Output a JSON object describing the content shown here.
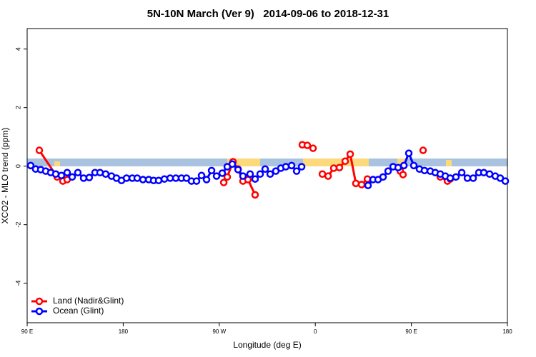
{
  "chart_data": {
    "type": "line",
    "title": "5N-10N March (Ver 9)   2014-09-06 to 2018-12-31",
    "x_label": "Longitude (deg E)",
    "y_label": "XCO2 - MLO trend (ppm)",
    "xlim": [
      90,
      540
    ],
    "xticks": [
      {
        "value": 90,
        "label": "90 E"
      },
      {
        "value": 180,
        "label": "180"
      },
      {
        "value": 270,
        "label": "90 W"
      },
      {
        "value": 360,
        "label": "0"
      },
      {
        "value": 450,
        "label": "90 E"
      },
      {
        "value": 540,
        "label": "180"
      }
    ],
    "ylim": [
      -5.35,
      4.7
    ],
    "yticks": [
      -4,
      -2,
      0,
      2,
      4
    ],
    "legend": "bottom-left",
    "series": [
      {
        "name": "Land (Nadir&Glint)",
        "color": "#ff0000",
        "x": [
          101.4,
          118.1,
          123.5,
          127.5,
          200,
          274.2,
          277.5,
          282.9,
          287.6,
          292.2,
          296.9,
          303.6,
          330,
          347.8,
          352.5,
          357.9,
          362,
          366.6,
          372.0,
          377.3,
          382.6,
          388.0,
          392.7,
          398.0,
          403.4,
          408.8,
          435,
          439.6,
          442.2,
          450,
          461.0,
          470,
          477.1,
          483.8,
          486.4
        ],
        "values": [
          0.54,
          -0.37,
          -0.51,
          -0.46,
          null,
          -0.56,
          -0.37,
          0.15,
          -0.1,
          -0.51,
          -0.46,
          -0.98,
          null,
          0.73,
          0.71,
          0.61,
          null,
          -0.27,
          -0.34,
          -0.07,
          -0.05,
          0.17,
          0.41,
          -0.59,
          -0.63,
          -0.44,
          null,
          -0.17,
          -0.29,
          null,
          0.54,
          null,
          -0.37,
          -0.51,
          -0.44
        ]
      },
      {
        "name": "Ocean (Glint)",
        "color": "#0000ff",
        "x": [
          93.3,
          98.0,
          102.7,
          107.4,
          112.1,
          116.8,
          122.1,
          127.5,
          132.2,
          137.5,
          142.9,
          148.2,
          153.6,
          158.3,
          163.6,
          169.0,
          173.7,
          178.4,
          183.1,
          188.5,
          193.1,
          198.5,
          203.9,
          208.5,
          213.2,
          218.6,
          224.0,
          229.3,
          234.6,
          239.3,
          244.0,
          248.7,
          253.4,
          258.1,
          262.8,
          267.5,
          272.8,
          277.5,
          282.2,
          287.6,
          292.2,
          298.9,
          303.6,
          308.3,
          313.0,
          317.7,
          323.0,
          327.7,
          332.4,
          337.8,
          342.5,
          347.2,
          380,
          409.4,
          414.1,
          418.8,
          423.5,
          428.2,
          432.9,
          437.6,
          443.0,
          447.6,
          452.3,
          457.6,
          462.3,
          467.7,
          472.4,
          477.1,
          481.8,
          486.4,
          491.8,
          497.2,
          502.5,
          507.9,
          513.2,
          517.9,
          523.3,
          528.6,
          533.3,
          538.0
        ],
        "values": [
          0.02,
          -0.1,
          -0.12,
          -0.17,
          -0.22,
          -0.27,
          -0.32,
          -0.22,
          -0.37,
          -0.22,
          -0.41,
          -0.39,
          -0.22,
          -0.22,
          -0.27,
          -0.34,
          -0.41,
          -0.49,
          -0.41,
          -0.41,
          -0.41,
          -0.46,
          -0.46,
          -0.49,
          -0.49,
          -0.44,
          -0.41,
          -0.41,
          -0.41,
          -0.41,
          -0.51,
          -0.51,
          -0.32,
          -0.46,
          -0.15,
          -0.34,
          -0.24,
          -0.02,
          0.07,
          -0.12,
          -0.34,
          -0.27,
          -0.44,
          -0.27,
          -0.1,
          -0.27,
          -0.17,
          -0.07,
          -0.02,
          0.02,
          -0.17,
          -0.02,
          null,
          -0.66,
          -0.46,
          -0.46,
          -0.37,
          -0.17,
          -0.02,
          -0.05,
          0.02,
          0.44,
          0.02,
          -0.1,
          -0.15,
          -0.17,
          -0.22,
          -0.27,
          -0.34,
          -0.41,
          -0.37,
          -0.22,
          -0.41,
          -0.41,
          -0.22,
          -0.22,
          -0.27,
          -0.34,
          -0.41,
          -0.51
        ]
      }
    ]
  }
}
